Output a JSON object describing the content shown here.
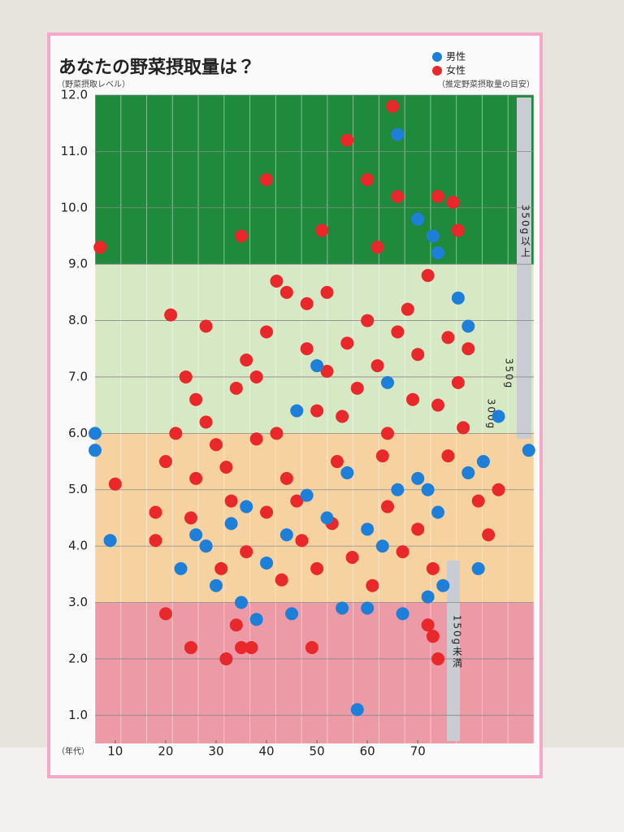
{
  "chart_data": {
    "type": "scatter",
    "title": "あなたの野菜摂取量は？",
    "subtitle": "（野菜摂取レベル）",
    "note": "（推定野菜摂取量の目安）",
    "xlabel": "（年代）",
    "xlim": [
      6,
      93
    ],
    "ylim": [
      0.5,
      12
    ],
    "xticks": [
      10,
      20,
      30,
      40,
      50,
      60,
      70
    ],
    "yticks": [
      {
        "value": 1,
        "label": "1.0"
      },
      {
        "value": 2,
        "label": "2.0"
      },
      {
        "value": 3,
        "label": "3.0"
      },
      {
        "value": 4,
        "label": "4.0"
      },
      {
        "value": 5,
        "label": "5.0"
      },
      {
        "value": 6,
        "label": "6.0"
      },
      {
        "value": 7,
        "label": "7.0"
      },
      {
        "value": 8,
        "label": "8.0"
      },
      {
        "value": 9,
        "label": "9.0"
      },
      {
        "value": 10,
        "label": "10.0"
      },
      {
        "value": 11,
        "label": "11.0"
      },
      {
        "value": 12,
        "label": "12.0"
      }
    ],
    "grid": true,
    "bands": [
      {
        "from": 9,
        "to": 12,
        "color": "#1f8a3c"
      },
      {
        "from": 6,
        "to": 9,
        "color": "#d6e8c4"
      },
      {
        "from": 3,
        "to": 6,
        "color": "#f6d2a0"
      },
      {
        "from": 0.5,
        "to": 3,
        "color": "#ec9aa6"
      }
    ],
    "annotations": [
      "350g以上",
      "350g",
      "300g",
      "150g未満"
    ],
    "series": [
      {
        "name": "男性",
        "color": "#1e7fd8",
        "x": [
          6,
          6,
          9,
          66,
          70,
          73,
          74,
          78,
          80,
          92,
          86,
          83,
          58,
          45,
          38,
          35,
          55,
          60,
          67,
          72,
          75,
          82,
          30,
          33,
          36,
          40,
          44,
          48,
          52,
          56,
          60,
          63,
          66,
          70,
          72,
          74,
          23,
          26,
          28,
          46,
          50,
          64,
          80
        ],
        "values": [
          6.0,
          5.7,
          4.1,
          11.3,
          9.8,
          9.5,
          9.2,
          8.4,
          7.9,
          5.7,
          6.3,
          5.5,
          1.1,
          2.8,
          2.7,
          3.0,
          2.9,
          2.9,
          2.8,
          3.1,
          3.3,
          3.6,
          3.3,
          4.4,
          4.7,
          3.7,
          4.2,
          4.9,
          4.5,
          5.3,
          4.3,
          4.0,
          5.0,
          5.2,
          5.0,
          4.6,
          3.6,
          4.2,
          4.0,
          6.4,
          7.2,
          6.9,
          5.3
        ]
      },
      {
        "name": "女性",
        "color": "#e8282a",
        "x": [
          7,
          65,
          56,
          40,
          60,
          66,
          74,
          77,
          51,
          35,
          62,
          78,
          21,
          28,
          42,
          44,
          48,
          52,
          20,
          25,
          32,
          34,
          35,
          37,
          49,
          72,
          73,
          74,
          10,
          18,
          18,
          20,
          22,
          24,
          26,
          28,
          30,
          32,
          34,
          36,
          38,
          40,
          42,
          44,
          46,
          48,
          50,
          52,
          54,
          56,
          58,
          60,
          62,
          64,
          66,
          68,
          70,
          72,
          74,
          76,
          78,
          80,
          82,
          84,
          86,
          25,
          28,
          31,
          33,
          36,
          40,
          43,
          47,
          50,
          53,
          57,
          61,
          64,
          67,
          70,
          73,
          76,
          79,
          26,
          38,
          55,
          63,
          69
        ],
        "values": [
          9.3,
          11.8,
          11.2,
          10.5,
          10.5,
          10.2,
          10.2,
          10.1,
          9.6,
          9.5,
          9.3,
          9.6,
          8.1,
          7.9,
          8.7,
          8.5,
          8.3,
          8.5,
          2.8,
          2.2,
          2.0,
          2.6,
          2.2,
          2.2,
          2.2,
          2.6,
          2.4,
          2.0,
          5.1,
          4.6,
          4.1,
          5.5,
          6.0,
          7.0,
          6.6,
          6.2,
          5.8,
          5.4,
          6.8,
          7.3,
          7.0,
          7.8,
          6.0,
          5.2,
          4.8,
          7.5,
          6.4,
          7.1,
          5.5,
          7.6,
          6.8,
          8.0,
          7.2,
          6.0,
          7.8,
          8.2,
          7.4,
          8.8,
          6.5,
          7.7,
          6.9,
          7.5,
          4.8,
          4.2,
          5.0,
          4.5,
          4.0,
          3.6,
          4.8,
          3.9,
          4.6,
          3.4,
          4.1,
          3.6,
          4.4,
          3.8,
          3.3,
          4.7,
          3.9,
          4.3,
          3.6,
          5.6,
          6.1,
          5.2,
          5.9,
          6.3,
          5.6,
          6.6
        ]
      }
    ]
  }
}
